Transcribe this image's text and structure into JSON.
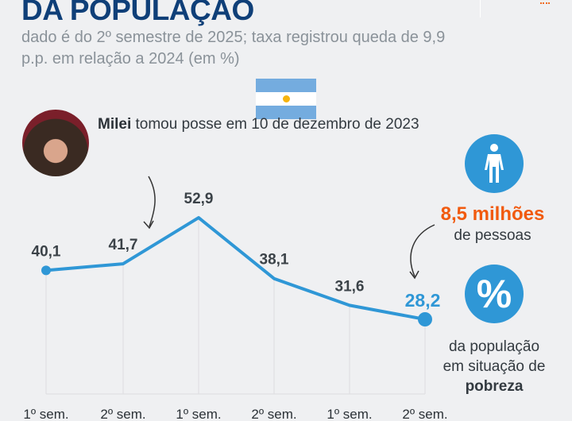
{
  "header": {
    "title": "DA POPULAÇÃO",
    "subtitle": "dado é do 2º semestre de 2025; taxa registrou queda de 9,9 p.p. em relação a 2024 (em %)"
  },
  "flag": {
    "name": "argentina-flag",
    "colors": [
      "#74acdf",
      "#ffffff",
      "#74acdf"
    ],
    "sun_color": "#f6b40e"
  },
  "annotation": {
    "bold": "Milei",
    "text": " tomou posse em 10 de dezembro de 2023"
  },
  "side": {
    "millions": "8,5 milhões",
    "people": "de pessoas",
    "percent_symbol": "%",
    "population_line1": "da população",
    "population_line2": "em situação de",
    "population_bold": "pobreza"
  },
  "colors": {
    "line": "#2f97d6",
    "title": "#0f3f78",
    "highlight": "#f15a0e"
  },
  "chart_data": {
    "type": "line",
    "categories": [
      "1º sem.",
      "2º sem.",
      "1º sem.",
      "2º sem.",
      "1º sem.",
      "2º sem."
    ],
    "values": [
      40.1,
      41.7,
      52.9,
      38.1,
      31.6,
      28.2
    ],
    "labels": [
      "40,1",
      "41,7",
      "52,9",
      "38,1",
      "31,6",
      "28,2"
    ],
    "grid": "vertical",
    "title": "",
    "xlabel": "",
    "ylabel": ""
  }
}
